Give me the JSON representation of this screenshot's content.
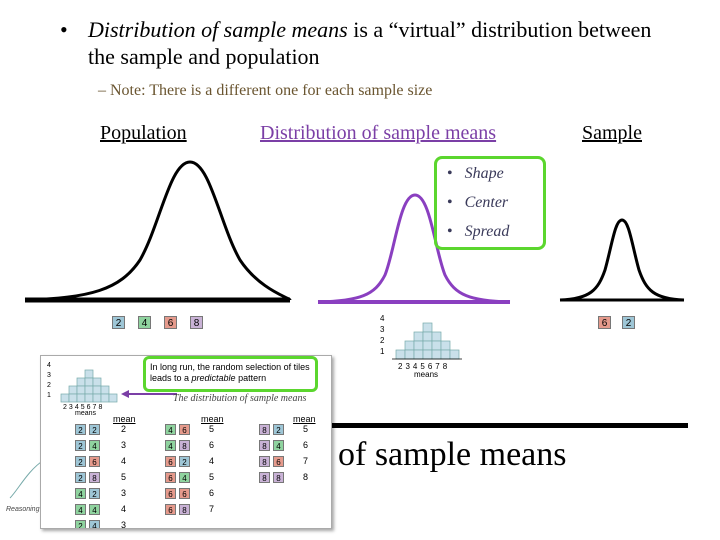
{
  "main_bullet": {
    "dot": "•",
    "emph": "Distribution of sample means",
    "rest": " is a “virtual” distribution between the sample and population"
  },
  "sub_bullet": "– Note: There is a different one for each sample size",
  "columns": {
    "population": "Population",
    "distribution": "Distribution of sample means",
    "sample": "Sample"
  },
  "properties": [
    "Shape",
    "Center",
    "Spread"
  ],
  "population_tiles": [
    "2",
    "4",
    "6",
    "8"
  ],
  "sample_tiles": [
    "6",
    "2"
  ],
  "small_histogram": {
    "y_ticks": [
      "4",
      "3",
      "2",
      "1"
    ],
    "x_ticks": [
      "2",
      "3",
      "4",
      "5",
      "6",
      "7",
      "8"
    ],
    "x_label": "means"
  },
  "big_text": "of sample means",
  "inset": {
    "callout_pre": "In long run, the random selection of tiles leads to a ",
    "callout_emph": "predictable",
    "callout_post": " pattern",
    "caption": "The distribution of sample means",
    "mean_header": "mean",
    "hist_y_ticks": [
      "4",
      "3",
      "2",
      "1"
    ],
    "hist_x_ticks": [
      "2",
      "3",
      "4",
      "5",
      "6",
      "7",
      "8"
    ],
    "hist_x_label": "means",
    "col1": [
      [
        "2",
        "2",
        "2"
      ],
      [
        "2",
        "4",
        "3"
      ],
      [
        "2",
        "6",
        "4"
      ],
      [
        "2",
        "8",
        "5"
      ],
      [
        "4",
        "2",
        "3"
      ],
      [
        "4",
        "4",
        "4"
      ]
    ],
    "col2": [
      [
        "4",
        "6",
        "5"
      ],
      [
        "4",
        "8",
        "6"
      ],
      [
        "6",
        "2",
        "4"
      ],
      [
        "6",
        "4",
        "5"
      ],
      [
        "6",
        "6",
        "6"
      ],
      [
        "6",
        "8",
        "7"
      ]
    ],
    "col3": [
      [
        "8",
        "2",
        "5"
      ],
      [
        "8",
        "4",
        "6"
      ],
      [
        "8",
        "6",
        "7"
      ],
      [
        "8",
        "8",
        "8"
      ]
    ],
    "last_row_col1": [
      "2",
      "4",
      "3"
    ]
  },
  "footer": "Reasoning i",
  "colors": {
    "accent_green": "#5bd62e",
    "accent_purple": "#7b3fa6"
  }
}
